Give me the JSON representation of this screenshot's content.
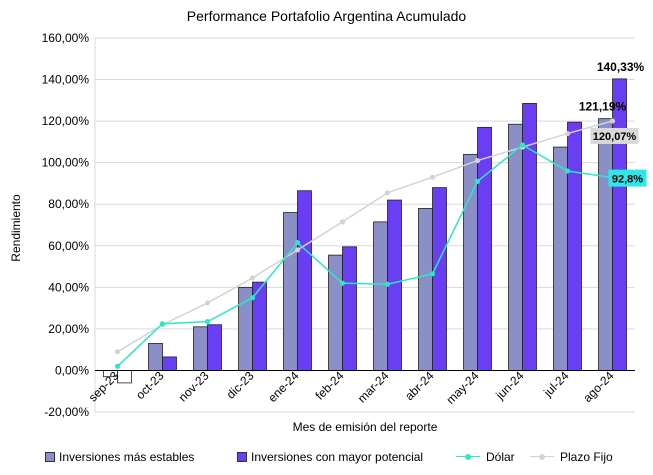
{
  "chart_data": {
    "type": "bar",
    "title": "Performance Portafolio Argentina Acumulado",
    "xlabel": "Mes de emisión del reporte",
    "ylabel": "Rendimiento",
    "categories": [
      "sep-23",
      "oct-23",
      "nov-23",
      "dic-23",
      "ene-24",
      "feb-24",
      "mar-24",
      "abr-24",
      "may-24",
      "jun-24",
      "jul-24",
      "ago-24"
    ],
    "ylim": [
      -20,
      160
    ],
    "yticks": [
      "-20,00%",
      "0,00%",
      "20,00%",
      "40,00%",
      "60,00%",
      "80,00%",
      "100,00%",
      "120,00%",
      "140,00%",
      "160,00%"
    ],
    "grid": true,
    "legend_position": "bottom",
    "series": [
      {
        "name": "Inversiones más estables",
        "kind": "bar",
        "color": "#8b8fc7",
        "values": [
          -3,
          13,
          21,
          40,
          76,
          55.5,
          71.5,
          78,
          104,
          118.5,
          107.5,
          121.19
        ]
      },
      {
        "name": "Inversiones con mayor potencial",
        "kind": "bar",
        "color": "#6a3ef2",
        "values": [
          -6,
          6.5,
          22,
          42.5,
          86.5,
          59.5,
          82,
          88,
          117,
          128.5,
          119.5,
          140.33
        ]
      },
      {
        "name": "Dólar",
        "kind": "line",
        "color": "#2de8c8",
        "values": [
          2,
          22.5,
          23.5,
          35,
          61.5,
          42,
          41.5,
          46.5,
          91,
          108.5,
          96,
          92.8
        ]
      },
      {
        "name": "Plazo Fijo",
        "kind": "line",
        "color": "#d3d3d3",
        "values": [
          9,
          22,
          32.5,
          44.5,
          58,
          71.5,
          85.5,
          93,
          101,
          107.5,
          114,
          120.07
        ]
      }
    ],
    "annotations": [
      {
        "series": "Inversiones con mayor potencial",
        "category": "ago-24",
        "text": "140,33%"
      },
      {
        "series": "Inversiones más estables",
        "category": "ago-24",
        "text": "121,19%"
      },
      {
        "series": "Plazo Fijo",
        "category": "ago-24",
        "text": "120,07%"
      },
      {
        "series": "Dólar",
        "category": "ago-24",
        "text": "92,8%"
      }
    ]
  }
}
